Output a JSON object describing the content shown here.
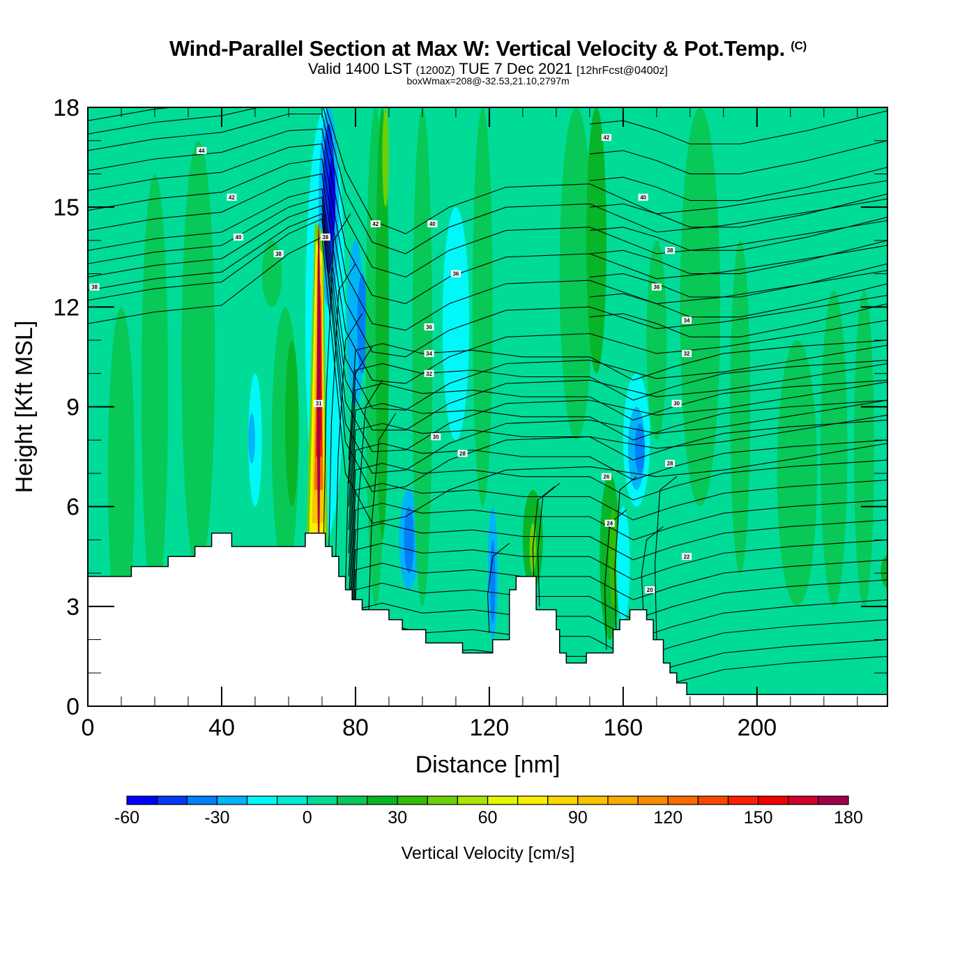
{
  "title": {
    "main": "Wind-Parallel Section at Max W: Vertical Velocity & Pot.Temp.",
    "copyright": "(C)",
    "valid_prefix": "Valid 1400 LST",
    "valid_utc": "(1200Z)",
    "valid_date": "TUE 7 Dec 2021",
    "forecast": "[12hrFcst@0400z]",
    "subtitle": "boxWmax=208@-32.53,21.10,2797m"
  },
  "chart_data": {
    "type": "heatmap",
    "title": "Wind-Parallel Section at Max W: Vertical Velocity & Pot.Temp.",
    "xlabel": "Distance [nm]",
    "ylabel": "Height [Kft MSL]",
    "xlim": [
      0,
      239
    ],
    "ylim": [
      0,
      18
    ],
    "x_ticks": [
      0,
      40,
      80,
      120,
      160,
      200
    ],
    "x_tick_labels": [
      "0",
      "40",
      "80",
      "120",
      "160",
      "200"
    ],
    "x_minor_step": 10,
    "y_ticks": [
      0,
      3,
      6,
      9,
      12,
      15,
      18
    ],
    "y_tick_labels": [
      "0",
      "3",
      "6",
      "9",
      "12",
      "15",
      "18"
    ],
    "y_minor_step": 1,
    "grid": false,
    "colorbar": {
      "title": "Vertical Velocity [cm/s]",
      "placement": "bottom",
      "min": -60,
      "max": 180,
      "step": 10,
      "tick_values": [
        -60,
        -30,
        0,
        30,
        60,
        90,
        120,
        150,
        180
      ],
      "tick_labels": [
        "-60",
        "-30",
        "0",
        "30",
        "60",
        "90",
        "120",
        "150",
        "180"
      ],
      "colors": [
        "#0000f8",
        "#0038f8",
        "#0080f8",
        "#00b4f8",
        "#00f8f8",
        "#00ecd0",
        "#00dc98",
        "#08c858",
        "#08b428",
        "#30bc08",
        "#6cd008",
        "#ace408",
        "#e0f800",
        "#f8f000",
        "#f8d800",
        "#f8c400",
        "#f8ac00",
        "#f88c00",
        "#f86c00",
        "#f84800",
        "#f82000",
        "#f00000",
        "#d00028",
        "#a00048"
      ]
    },
    "contour_field": "Potential Temperature",
    "contour_labels": [
      {
        "value": "44",
        "x_nm": 34,
        "z_kft": 16.7
      },
      {
        "value": "42",
        "x_nm": 43,
        "z_kft": 15.3
      },
      {
        "value": "40",
        "x_nm": 45,
        "z_kft": 14.1
      },
      {
        "value": "38",
        "x_nm": 57,
        "z_kft": 13.6
      },
      {
        "value": "38",
        "x_nm": 2,
        "z_kft": 12.6
      },
      {
        "value": "38",
        "x_nm": 71,
        "z_kft": 14.1
      },
      {
        "value": "42",
        "x_nm": 86,
        "z_kft": 14.5
      },
      {
        "value": "40",
        "x_nm": 103,
        "z_kft": 14.5
      },
      {
        "value": "36",
        "x_nm": 110,
        "z_kft": 13.0
      },
      {
        "value": "36",
        "x_nm": 102,
        "z_kft": 11.4
      },
      {
        "value": "34",
        "x_nm": 102,
        "z_kft": 10.6
      },
      {
        "value": "32",
        "x_nm": 102,
        "z_kft": 10.0
      },
      {
        "value": "31",
        "x_nm": 69,
        "z_kft": 9.1
      },
      {
        "value": "30",
        "x_nm": 104,
        "z_kft": 8.1
      },
      {
        "value": "28",
        "x_nm": 112,
        "z_kft": 7.6
      },
      {
        "value": "42",
        "x_nm": 155,
        "z_kft": 17.1
      },
      {
        "value": "40",
        "x_nm": 166,
        "z_kft": 15.3
      },
      {
        "value": "38",
        "x_nm": 174,
        "z_kft": 13.7
      },
      {
        "value": "36",
        "x_nm": 170,
        "z_kft": 12.6
      },
      {
        "value": "34",
        "x_nm": 179,
        "z_kft": 11.6
      },
      {
        "value": "32",
        "x_nm": 179,
        "z_kft": 10.6
      },
      {
        "value": "30",
        "x_nm": 176,
        "z_kft": 9.1
      },
      {
        "value": "28",
        "x_nm": 174,
        "z_kft": 7.3
      },
      {
        "value": "26",
        "x_nm": 155,
        "z_kft": 6.9
      },
      {
        "value": "24",
        "x_nm": 156,
        "z_kft": 5.5
      },
      {
        "value": "22",
        "x_nm": 179,
        "z_kft": 4.5
      },
      {
        "value": "20",
        "x_nm": 168,
        "z_kft": 3.5
      }
    ],
    "terrain_kft": [
      {
        "x_nm": 0,
        "z": 3.9
      },
      {
        "x_nm": 13,
        "z": 4.2
      },
      {
        "x_nm": 24,
        "z": 4.5
      },
      {
        "x_nm": 32,
        "z": 4.8
      },
      {
        "x_nm": 37,
        "z": 5.2
      },
      {
        "x_nm": 43,
        "z": 4.8
      },
      {
        "x_nm": 65,
        "z": 5.2
      },
      {
        "x_nm": 71,
        "z": 4.8
      },
      {
        "x_nm": 73,
        "z": 4.5
      },
      {
        "x_nm": 75,
        "z": 3.9
      },
      {
        "x_nm": 77,
        "z": 3.5
      },
      {
        "x_nm": 79,
        "z": 3.2
      },
      {
        "x_nm": 82,
        "z": 2.9
      },
      {
        "x_nm": 90,
        "z": 2.6
      },
      {
        "x_nm": 94,
        "z": 2.3
      },
      {
        "x_nm": 101,
        "z": 1.9
      },
      {
        "x_nm": 112,
        "z": 1.6
      },
      {
        "x_nm": 121,
        "z": 2.0
      },
      {
        "x_nm": 126,
        "z": 3.5
      },
      {
        "x_nm": 128,
        "z": 3.9
      },
      {
        "x_nm": 134,
        "z": 2.9
      },
      {
        "x_nm": 140,
        "z": 2.3
      },
      {
        "x_nm": 141,
        "z": 1.6
      },
      {
        "x_nm": 143,
        "z": 1.3
      },
      {
        "x_nm": 149,
        "z": 1.6
      },
      {
        "x_nm": 157,
        "z": 2.3
      },
      {
        "x_nm": 159,
        "z": 2.6
      },
      {
        "x_nm": 162,
        "z": 2.9
      },
      {
        "x_nm": 167,
        "z": 2.6
      },
      {
        "x_nm": 169,
        "z": 2.0
      },
      {
        "x_nm": 172,
        "z": 1.3
      },
      {
        "x_nm": 174,
        "z": 1.0
      },
      {
        "x_nm": 176,
        "z": 0.7
      },
      {
        "x_nm": 179,
        "z": 0.35
      },
      {
        "x_nm": 239,
        "z": 0.35
      }
    ],
    "features": [
      {
        "name": "updraft core",
        "x_nm": 69,
        "z_kft_range": [
          5,
          13
        ],
        "max_w_cms": 208
      },
      {
        "name": "downdraft",
        "x_nm": 72,
        "z_kft_range": [
          13,
          17.5
        ],
        "min_w_cms": -50
      },
      {
        "name": "downdraft",
        "x_nm": 164,
        "z_kft_range": [
          6.5,
          9
        ],
        "min_w_cms": -40
      },
      {
        "name": "downdraft",
        "x_nm": 96,
        "z_kft_range": [
          4,
          6
        ],
        "min_w_cms": -35
      },
      {
        "name": "downdraft",
        "x_nm": 120,
        "z_kft_range": [
          2,
          5
        ],
        "min_w_cms": -45
      }
    ]
  }
}
